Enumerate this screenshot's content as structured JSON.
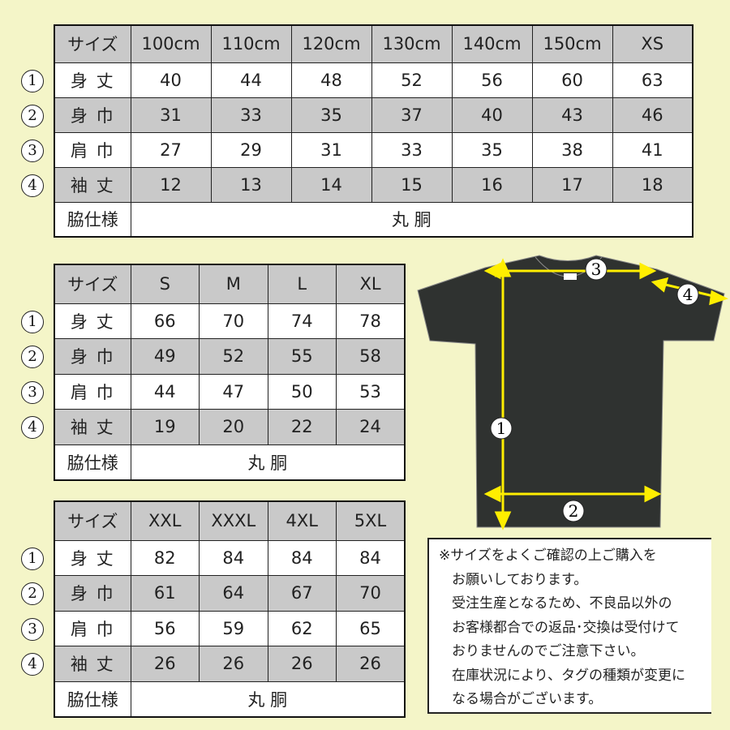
{
  "tables": [
    {
      "headers": [
        "サイズ",
        "100cm",
        "110cm",
        "120cm",
        "130cm",
        "140cm",
        "150cm",
        "XS"
      ],
      "rows": [
        {
          "num": "1",
          "label": "身 丈",
          "values": [
            "40",
            "44",
            "48",
            "52",
            "56",
            "60",
            "63"
          ]
        },
        {
          "num": "2",
          "label": "身 巾",
          "values": [
            "31",
            "33",
            "35",
            "37",
            "40",
            "43",
            "46"
          ]
        },
        {
          "num": "3",
          "label": "肩 巾",
          "values": [
            "27",
            "29",
            "31",
            "33",
            "35",
            "38",
            "41"
          ]
        },
        {
          "num": "4",
          "label": "袖 丈",
          "values": [
            "12",
            "13",
            "14",
            "15",
            "16",
            "17",
            "18"
          ]
        }
      ],
      "side_label": "脇仕様",
      "side_value": "丸 胴"
    },
    {
      "headers": [
        "サイズ",
        "S",
        "M",
        "L",
        "XL"
      ],
      "rows": [
        {
          "num": "1",
          "label": "身 丈",
          "values": [
            "66",
            "70",
            "74",
            "78"
          ]
        },
        {
          "num": "2",
          "label": "身 巾",
          "values": [
            "49",
            "52",
            "55",
            "58"
          ]
        },
        {
          "num": "3",
          "label": "肩 巾",
          "values": [
            "44",
            "47",
            "50",
            "53"
          ]
        },
        {
          "num": "4",
          "label": "袖 丈",
          "values": [
            "19",
            "20",
            "22",
            "24"
          ]
        }
      ],
      "side_label": "脇仕様",
      "side_value": "丸 胴"
    },
    {
      "headers": [
        "サイズ",
        "XXL",
        "XXXL",
        "4XL",
        "5XL"
      ],
      "rows": [
        {
          "num": "1",
          "label": "身 丈",
          "values": [
            "82",
            "84",
            "84",
            "84"
          ]
        },
        {
          "num": "2",
          "label": "身 巾",
          "values": [
            "61",
            "64",
            "67",
            "70"
          ]
        },
        {
          "num": "3",
          "label": "肩 巾",
          "values": [
            "56",
            "59",
            "62",
            "65"
          ]
        },
        {
          "num": "4",
          "label": "袖 丈",
          "values": [
            "26",
            "26",
            "26",
            "26"
          ]
        }
      ],
      "side_label": "脇仕様",
      "side_value": "丸 胴"
    }
  ],
  "diagram": {
    "labels": [
      "1",
      "2",
      "3",
      "4"
    ],
    "shirt_color": "#2f3230",
    "arrow_color": "#ffee00"
  },
  "note": {
    "lines": [
      "※サイズをよくご確認の上ご購入を",
      "お願いしております。",
      "受注生産となるため、不良品以外の",
      "お客様都合での返品･交換は受付けて",
      "おりませんのでご注意下さい。",
      "在庫状況により、タグの種類が変更に",
      "なる場合がございます。"
    ]
  },
  "colors": {
    "background": "#f4f5c8",
    "gray_row": "#c9c9c9"
  }
}
